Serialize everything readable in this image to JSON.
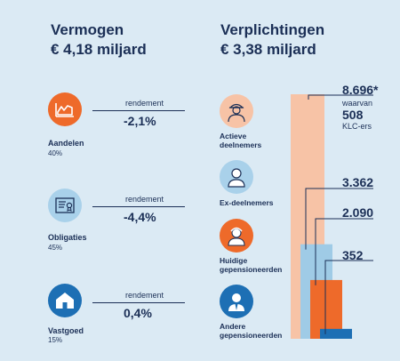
{
  "assets": {
    "title": "Vermogen",
    "amount": "€ 4,18 miljard",
    "items": [
      {
        "name": "Aandelen",
        "share": "40%",
        "return_label": "rendement",
        "return_value": "-2,1%",
        "icon": "stock-chart-icon"
      },
      {
        "name": "Obligaties",
        "share": "45%",
        "return_label": "rendement",
        "return_value": "-4,4%",
        "icon": "certificate-icon"
      },
      {
        "name": "Vastgoed",
        "share": "15%",
        "return_label": "rendement",
        "return_value": "0,4%",
        "icon": "house-icon"
      }
    ]
  },
  "liabilities": {
    "title": "Verplichtingen",
    "amount": "€ 3,38 miljard",
    "groups": [
      {
        "label_line1": "Actieve",
        "label_line2": "deelnemers",
        "icon": "worker-icon"
      },
      {
        "label_line1": "Ex-deelnemers",
        "label_line2": "",
        "icon": "person-icon"
      },
      {
        "label_line1": "Huidige",
        "label_line2": "gepensioneerden",
        "icon": "retiree-icon"
      },
      {
        "label_line1": "Andere",
        "label_line2": "gepensioneerden",
        "icon": "suited-person-icon"
      }
    ]
  },
  "chart_data": {
    "type": "bar",
    "categories": [
      "Actieve deelnemers",
      "Ex-deelnemers",
      "Huidige gepensioneerden",
      "Andere gepensioneerden"
    ],
    "values": [
      8696,
      3362,
      2090,
      352
    ],
    "value_labels": [
      "8.696*",
      "3.362",
      "2.090",
      "352"
    ],
    "annotation": {
      "line1": "waarvan",
      "value": "508",
      "line2": "KLC-ers"
    },
    "colors": [
      "#f7c3a6",
      "#9fcbe6",
      "#ee6a2a",
      "#1d6fb4"
    ]
  },
  "colors": {
    "navy": "#1b2f56",
    "orange": "#ee6a2a",
    "light_blue": "#a9d1ea",
    "peach": "#f7c3a6",
    "background": "#dbeaf4"
  }
}
